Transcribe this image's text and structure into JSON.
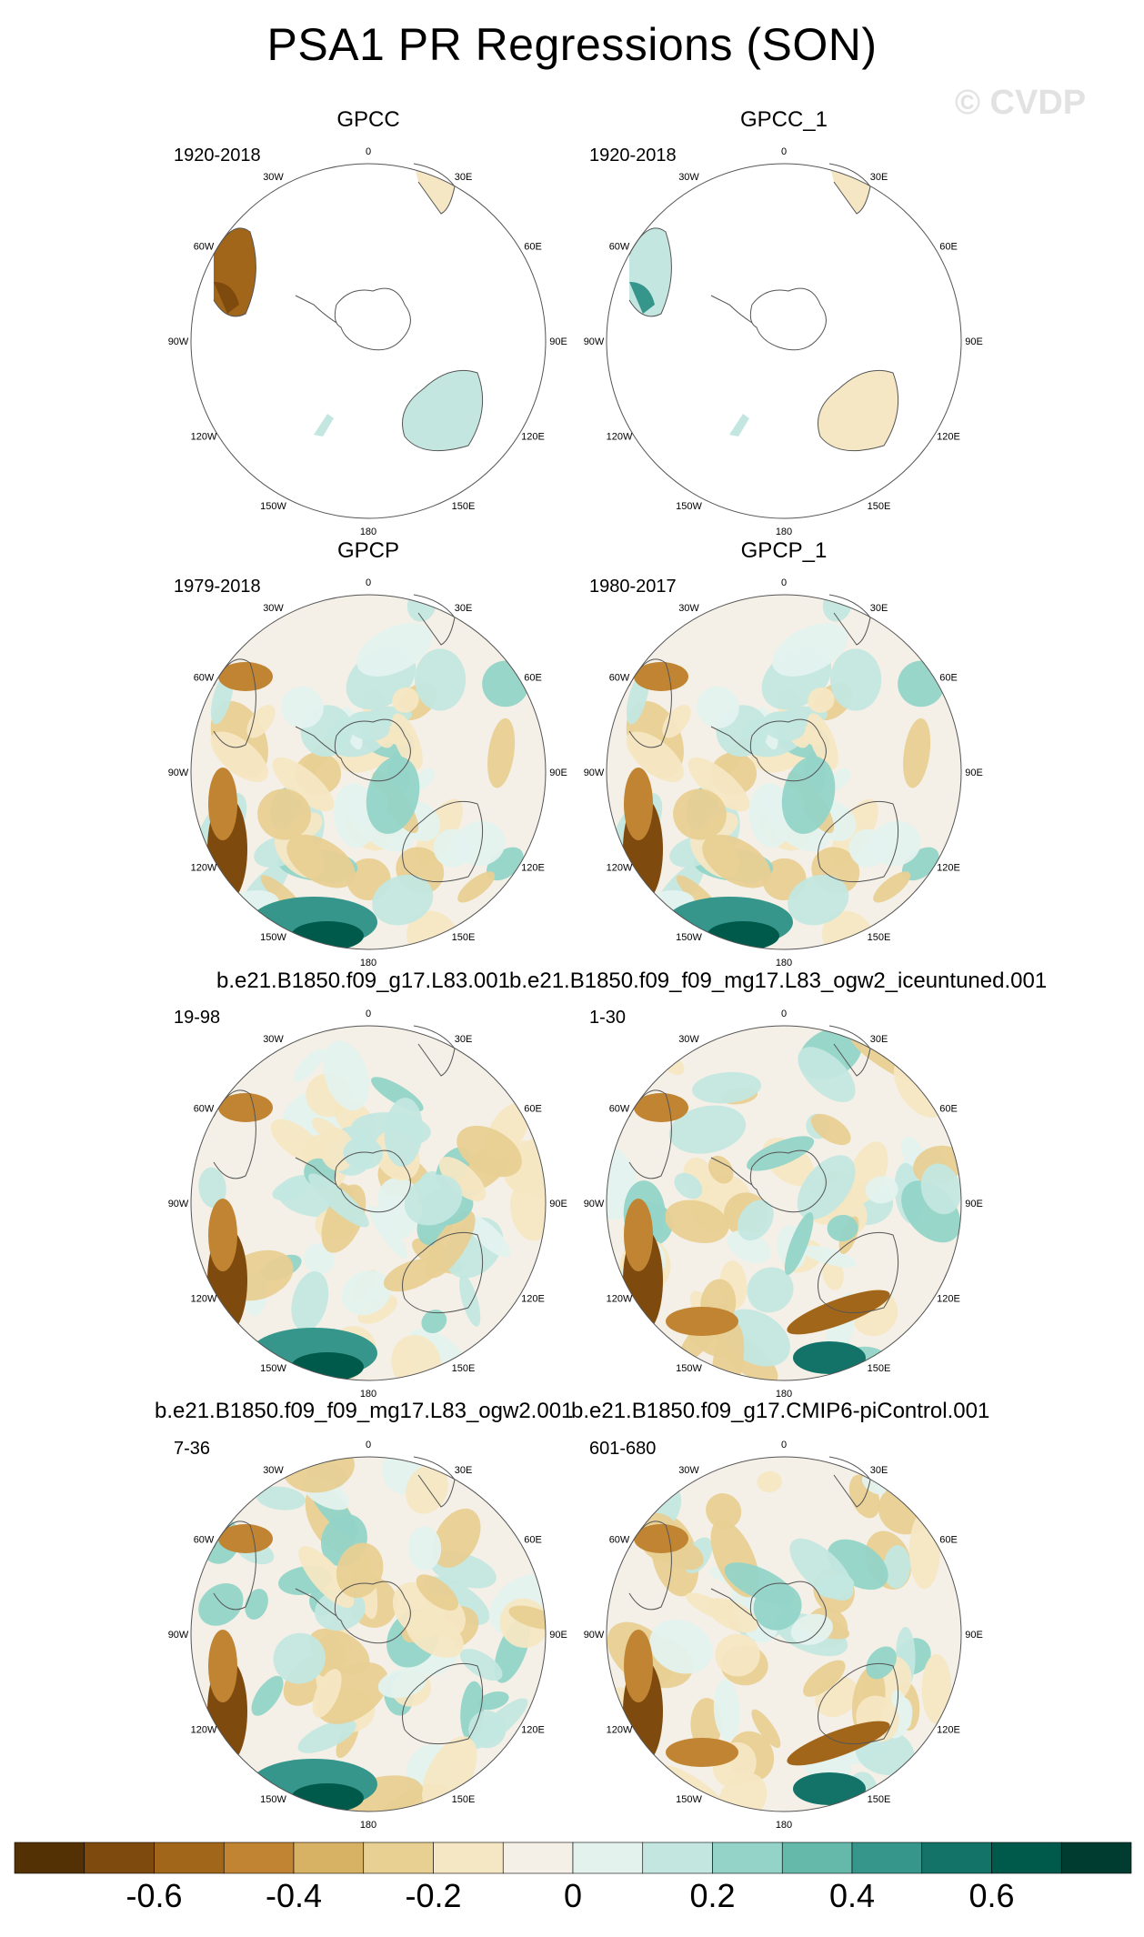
{
  "title": "PSA1 PR Regressions (SON)",
  "watermark": "© CVDP",
  "colors": {
    "levels": [
      "#543005",
      "#7e4a0e",
      "#a2661a",
      "#c08433",
      "#d7b164",
      "#e8cf92",
      "#f5e7c3",
      "#f4f0e7",
      "#e4f2ee",
      "#c3e7e0",
      "#94d4c8",
      "#64b9ab",
      "#36968b",
      "#137368",
      "#005a4c",
      "#003c30"
    ],
    "land_outline": "#555555",
    "rim": "#555555"
  },
  "longitude_labels": [
    "0",
    "30E",
    "60E",
    "90E",
    "120E",
    "150E",
    "180",
    "150W",
    "120W",
    "90W",
    "60W",
    "30W"
  ],
  "panels": [
    {
      "title": "GPCC",
      "years": "1920-2018",
      "kind": "land",
      "seed": 3,
      "dark_patch": "brown"
    },
    {
      "title": "GPCC_1",
      "years": "1920-2018",
      "kind": "land",
      "seed": 7,
      "dark_patch": "teal"
    },
    {
      "title": "GPCP",
      "years": "1979-2018",
      "kind": "full",
      "seed": 11,
      "dark_patch": "both"
    },
    {
      "title": "GPCP_1",
      "years": "1980-2017",
      "kind": "full",
      "seed": 11,
      "dark_patch": "both"
    },
    {
      "title": "",
      "years": "19-98",
      "kind": "full",
      "seed": 19,
      "dark_patch": "both"
    },
    {
      "title": "",
      "years": "1-30",
      "kind": "full",
      "seed": 23,
      "dark_patch": "mixed"
    },
    {
      "title": "",
      "years": "7-36",
      "kind": "full",
      "seed": 29,
      "dark_patch": "both"
    },
    {
      "title": "",
      "years": "601-680",
      "kind": "full",
      "seed": 31,
      "dark_patch": "mixed"
    }
  ],
  "row_titles": [
    {
      "left": "b.e21.B1850.f09_g17.L83.001",
      "right": "b.e21.B1850.f09_f09_mg17.L83_ogw2_iceuntuned.001"
    },
    {
      "left": "b.e21.B1850.f09_f09_mg17.L83_ogw2.001",
      "right": "b.e21.B1850.f09_g17.CMIP6-piControl.001"
    }
  ],
  "colorbar": {
    "labels": [
      "-0.6",
      "-0.4",
      "-0.2",
      "0",
      "0.2",
      "0.4",
      "0.6"
    ],
    "range": [
      -0.8,
      0.8
    ],
    "step": 0.1
  }
}
